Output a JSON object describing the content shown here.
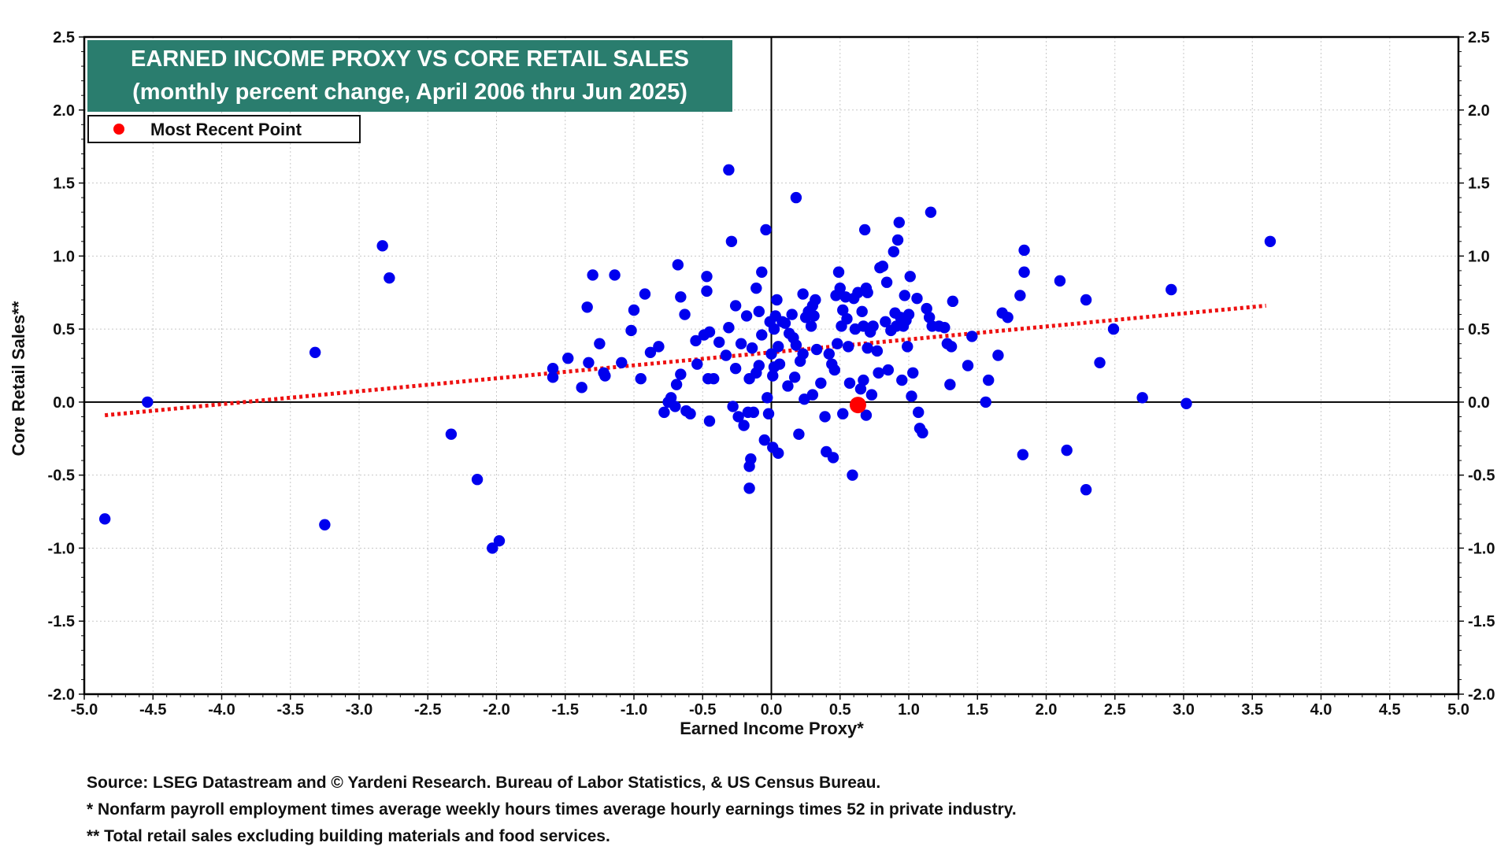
{
  "colors": {
    "title_bg": "#2a7d6e",
    "point": "#0000ee",
    "recent_point": "#ff0000",
    "trend": "#ee1111",
    "grid": "#c8c8c8"
  },
  "chart_data": {
    "type": "scatter",
    "title": "EARNED INCOME PROXY VS CORE RETAIL SALES",
    "subtitle": "(monthly percent change, April 2006 thru Jun 2025)",
    "xlabel": "Earned Income Proxy*",
    "ylabel": "Core Retail  Sales**",
    "xlim": [
      -5.0,
      5.0
    ],
    "ylim": [
      -2.0,
      2.5
    ],
    "x_ticks": [
      "-5.0",
      "-4.5",
      "-4.0",
      "-3.5",
      "-3.0",
      "-2.5",
      "-2.0",
      "-1.5",
      "-1.0",
      "-0.5",
      "0.0",
      "0.5",
      "1.0",
      "1.5",
      "2.0",
      "2.5",
      "3.0",
      "3.5",
      "4.0",
      "4.5",
      "5.0"
    ],
    "y_ticks": [
      "2.5",
      "2.0",
      "1.5",
      "1.0",
      "0.5",
      "0.0",
      "-0.5",
      "-1.0",
      "-1.5",
      "-2.0"
    ],
    "grid": true,
    "legend": {
      "label": "Most Recent Point",
      "position": "top-left"
    },
    "trendline": {
      "x": [
        -4.85,
        3.6
      ],
      "y": [
        -0.09,
        0.66
      ]
    },
    "most_recent": {
      "x": 0.63,
      "y": -0.02
    },
    "points": [
      [
        -4.85,
        -0.8
      ],
      [
        -4.54,
        0.0
      ],
      [
        -3.32,
        0.34
      ],
      [
        -3.25,
        -0.84
      ],
      [
        -2.83,
        1.07
      ],
      [
        -2.78,
        0.85
      ],
      [
        -2.33,
        -0.22
      ],
      [
        -2.14,
        -0.53
      ],
      [
        -2.03,
        -1.0
      ],
      [
        -1.98,
        -0.95
      ],
      [
        -1.59,
        0.23
      ],
      [
        -1.59,
        0.17
      ],
      [
        -1.48,
        0.3
      ],
      [
        -1.38,
        0.1
      ],
      [
        -1.34,
        0.65
      ],
      [
        -1.33,
        0.27
      ],
      [
        -1.3,
        0.87
      ],
      [
        -1.25,
        0.4
      ],
      [
        -1.22,
        0.2
      ],
      [
        -1.21,
        0.18
      ],
      [
        -1.14,
        0.87
      ],
      [
        -1.09,
        0.27
      ],
      [
        -1.02,
        0.49
      ],
      [
        -1.0,
        0.63
      ],
      [
        -0.95,
        0.16
      ],
      [
        -0.92,
        0.74
      ],
      [
        -0.88,
        0.34
      ],
      [
        -0.82,
        0.38
      ],
      [
        -0.78,
        -0.07
      ],
      [
        -0.75,
        0.0
      ],
      [
        -0.73,
        0.03
      ],
      [
        -0.7,
        -0.03
      ],
      [
        -0.69,
        0.12
      ],
      [
        -0.68,
        0.94
      ],
      [
        -0.66,
        0.72
      ],
      [
        -0.66,
        0.19
      ],
      [
        -0.63,
        0.6
      ],
      [
        -0.62,
        -0.06
      ],
      [
        -0.59,
        -0.08
      ],
      [
        -0.55,
        0.42
      ],
      [
        -0.54,
        0.26
      ],
      [
        -0.49,
        0.46
      ],
      [
        -0.47,
        0.86
      ],
      [
        -0.47,
        0.76
      ],
      [
        -0.46,
        0.16
      ],
      [
        -0.45,
        -0.13
      ],
      [
        -0.45,
        0.48
      ],
      [
        -0.42,
        0.16
      ],
      [
        -0.38,
        0.41
      ],
      [
        -0.33,
        0.32
      ],
      [
        -0.31,
        0.51
      ],
      [
        -0.31,
        1.59
      ],
      [
        -0.29,
        1.1
      ],
      [
        -0.28,
        -0.03
      ],
      [
        -0.26,
        0.66
      ],
      [
        -0.26,
        0.23
      ],
      [
        -0.24,
        -0.1
      ],
      [
        -0.22,
        0.4
      ],
      [
        -0.2,
        -0.16
      ],
      [
        -0.18,
        0.59
      ],
      [
        -0.17,
        -0.07
      ],
      [
        -0.16,
        -0.44
      ],
      [
        -0.16,
        0.16
      ],
      [
        -0.16,
        -0.59
      ],
      [
        -0.15,
        -0.39
      ],
      [
        -0.14,
        0.37
      ],
      [
        -0.13,
        -0.07
      ],
      [
        -0.11,
        0.78
      ],
      [
        -0.11,
        0.2
      ],
      [
        -0.09,
        0.62
      ],
      [
        -0.09,
        0.25
      ],
      [
        -0.07,
        0.89
      ],
      [
        -0.07,
        0.46
      ],
      [
        -0.05,
        -0.26
      ],
      [
        -0.04,
        1.18
      ],
      [
        -0.03,
        0.03
      ],
      [
        -0.02,
        -0.08
      ],
      [
        -0.01,
        0.55
      ],
      [
        0.0,
        0.33
      ],
      [
        0.01,
        0.18
      ],
      [
        0.01,
        -0.31
      ],
      [
        0.02,
        0.5
      ],
      [
        0.02,
        0.24
      ],
      [
        0.03,
        0.59
      ],
      [
        0.04,
        0.7
      ],
      [
        0.05,
        0.38
      ],
      [
        0.05,
        -0.35
      ],
      [
        0.06,
        0.26
      ],
      [
        0.08,
        0.55
      ],
      [
        0.1,
        0.54
      ],
      [
        0.12,
        0.11
      ],
      [
        0.13,
        0.47
      ],
      [
        0.15,
        0.6
      ],
      [
        0.16,
        0.44
      ],
      [
        0.17,
        0.17
      ],
      [
        0.18,
        0.39
      ],
      [
        0.18,
        1.4
      ],
      [
        0.2,
        -0.22
      ],
      [
        0.21,
        0.28
      ],
      [
        0.23,
        0.33
      ],
      [
        0.23,
        0.74
      ],
      [
        0.24,
        0.02
      ],
      [
        0.25,
        0.58
      ],
      [
        0.27,
        0.62
      ],
      [
        0.29,
        0.52
      ],
      [
        0.3,
        0.05
      ],
      [
        0.3,
        0.66
      ],
      [
        0.31,
        0.59
      ],
      [
        0.32,
        0.7
      ],
      [
        0.33,
        0.36
      ],
      [
        0.36,
        0.13
      ],
      [
        0.39,
        -0.1
      ],
      [
        0.4,
        -0.34
      ],
      [
        0.42,
        0.33
      ],
      [
        0.44,
        0.26
      ],
      [
        0.45,
        -0.38
      ],
      [
        0.46,
        0.22
      ],
      [
        0.47,
        0.73
      ],
      [
        0.48,
        0.4
      ],
      [
        0.49,
        0.89
      ],
      [
        0.5,
        0.78
      ],
      [
        0.51,
        0.52
      ],
      [
        0.52,
        0.63
      ],
      [
        0.52,
        -0.08
      ],
      [
        0.54,
        0.72
      ],
      [
        0.55,
        0.57
      ],
      [
        0.56,
        0.38
      ],
      [
        0.57,
        0.13
      ],
      [
        0.59,
        -0.5
      ],
      [
        0.6,
        0.71
      ],
      [
        0.61,
        0.5
      ],
      [
        0.62,
        -0.03
      ],
      [
        0.63,
        0.75
      ],
      [
        0.65,
        0.09
      ],
      [
        0.66,
        0.62
      ],
      [
        0.67,
        0.15
      ],
      [
        0.67,
        0.52
      ],
      [
        0.68,
        1.18
      ],
      [
        0.69,
        0.78
      ],
      [
        0.69,
        -0.09
      ],
      [
        0.7,
        0.75
      ],
      [
        0.7,
        0.37
      ],
      [
        0.72,
        0.48
      ],
      [
        0.73,
        0.05
      ],
      [
        0.74,
        0.52
      ],
      [
        0.77,
        0.35
      ],
      [
        0.78,
        0.2
      ],
      [
        0.79,
        0.92
      ],
      [
        0.81,
        0.93
      ],
      [
        0.83,
        0.55
      ],
      [
        0.84,
        0.82
      ],
      [
        0.85,
        0.22
      ],
      [
        0.87,
        0.49
      ],
      [
        0.89,
        1.03
      ],
      [
        0.9,
        0.61
      ],
      [
        0.91,
        0.52
      ],
      [
        0.92,
        1.11
      ],
      [
        0.93,
        1.23
      ],
      [
        0.94,
        0.58
      ],
      [
        0.95,
        0.15
      ],
      [
        0.96,
        0.52
      ],
      [
        0.97,
        0.73
      ],
      [
        0.98,
        0.56
      ],
      [
        0.99,
        0.38
      ],
      [
        1.0,
        0.6
      ],
      [
        1.01,
        0.86
      ],
      [
        1.02,
        0.04
      ],
      [
        1.03,
        0.2
      ],
      [
        1.06,
        0.71
      ],
      [
        1.07,
        -0.07
      ],
      [
        1.08,
        -0.18
      ],
      [
        1.1,
        -0.21
      ],
      [
        1.13,
        0.64
      ],
      [
        1.15,
        0.58
      ],
      [
        1.16,
        1.3
      ],
      [
        1.17,
        0.52
      ],
      [
        1.22,
        0.52
      ],
      [
        1.26,
        0.51
      ],
      [
        1.28,
        0.4
      ],
      [
        1.3,
        0.12
      ],
      [
        1.31,
        0.38
      ],
      [
        1.32,
        0.69
      ],
      [
        1.43,
        0.25
      ],
      [
        1.46,
        0.45
      ],
      [
        1.56,
        0.0
      ],
      [
        1.58,
        0.15
      ],
      [
        1.65,
        0.32
      ],
      [
        1.68,
        0.61
      ],
      [
        1.72,
        0.58
      ],
      [
        1.81,
        0.73
      ],
      [
        1.83,
        -0.36
      ],
      [
        1.84,
        1.04
      ],
      [
        1.84,
        0.89
      ],
      [
        2.1,
        0.83
      ],
      [
        2.15,
        -0.33
      ],
      [
        2.29,
        0.7
      ],
      [
        2.29,
        -0.6
      ],
      [
        2.39,
        0.27
      ],
      [
        2.49,
        0.5
      ],
      [
        2.7,
        0.03
      ],
      [
        2.91,
        0.77
      ],
      [
        3.02,
        -0.01
      ],
      [
        3.63,
        1.1
      ]
    ]
  },
  "footer": {
    "source": "Source: LSEG Datastream and © Yardeni Research. Bureau of Labor Statistics, & US Census Bureau.",
    "note1": "* Nonfarm payroll employment times average weekly hours times average hourly earnings times 52 in private industry.",
    "note2": "** Total retail sales excluding building materials and food services."
  }
}
